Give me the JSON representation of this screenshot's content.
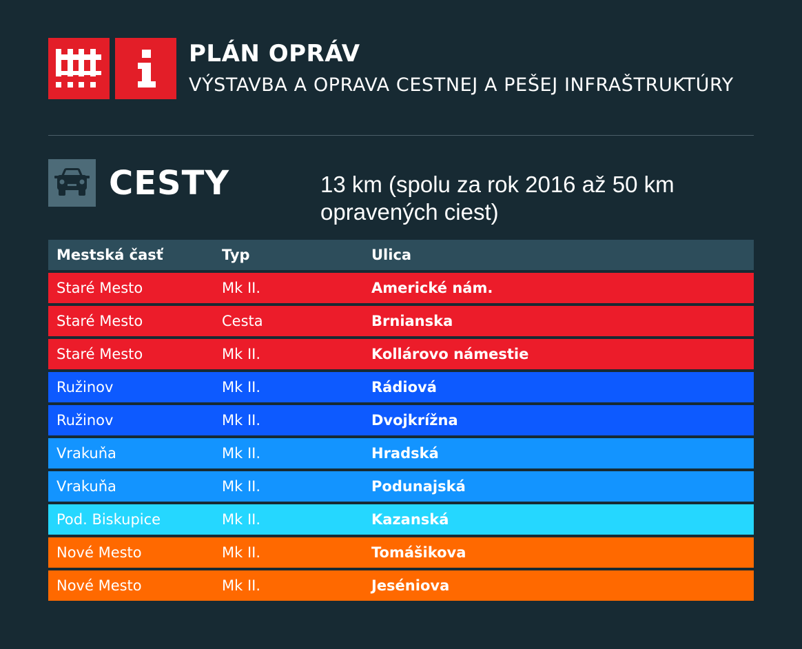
{
  "header": {
    "title": "PLÁN OPRÁV",
    "subtitle": "VÝSTAVBA A OPRAVA CESTNEJ A PEŠEJ INFRAŠTRUKTÚRY"
  },
  "icons": {
    "logo": "city-grid-logo",
    "info": "info-icon",
    "section": "car-icon"
  },
  "colors": {
    "background": "#172a33",
    "brand_red": "#e31e28",
    "header_row": "#2d4d5b",
    "stare_mesto": "#ec1c2a",
    "ruzinov": "#0d5aff",
    "vrakuna": "#1394ff",
    "biskupice": "#25d7ff",
    "nove_mesto": "#ff6900"
  },
  "section": {
    "title": "CESTY",
    "note": "13 km (spolu za rok 2016 až 50 km opravených ciest)"
  },
  "table": {
    "columns": [
      "Mestská časť",
      "Typ",
      "Ulica"
    ],
    "rows": [
      {
        "district": "Staré Mesto",
        "type": "Mk II.",
        "street": "Americké nám.",
        "color": "#ec1c2a"
      },
      {
        "district": "Staré Mesto",
        "type": "Cesta",
        "street": "Brnianska",
        "color": "#ec1c2a"
      },
      {
        "district": "Staré Mesto",
        "type": "Mk II.",
        "street": "Kollárovo námestie",
        "color": "#ec1c2a"
      },
      {
        "district": "Ružinov",
        "type": "Mk II.",
        "street": "Rádiová",
        "color": "#0d5aff"
      },
      {
        "district": "Ružinov",
        "type": "Mk II.",
        "street": "Dvojkrížna",
        "color": "#0d5aff"
      },
      {
        "district": "Vrakuňa",
        "type": "Mk II.",
        "street": "Hradská",
        "color": "#1394ff"
      },
      {
        "district": "Vrakuňa",
        "type": "Mk II.",
        "street": "Podunajská",
        "color": "#1394ff"
      },
      {
        "district": "Pod. Biskupice",
        "type": "Mk II.",
        "street": "Kazanská",
        "color": "#25d7ff"
      },
      {
        "district": "Nové Mesto",
        "type": "Mk II.",
        "street": "Tomášikova",
        "color": "#ff6900"
      },
      {
        "district": "Nové Mesto",
        "type": "Mk II.",
        "street": "Jeséniova",
        "color": "#ff6900"
      }
    ]
  }
}
